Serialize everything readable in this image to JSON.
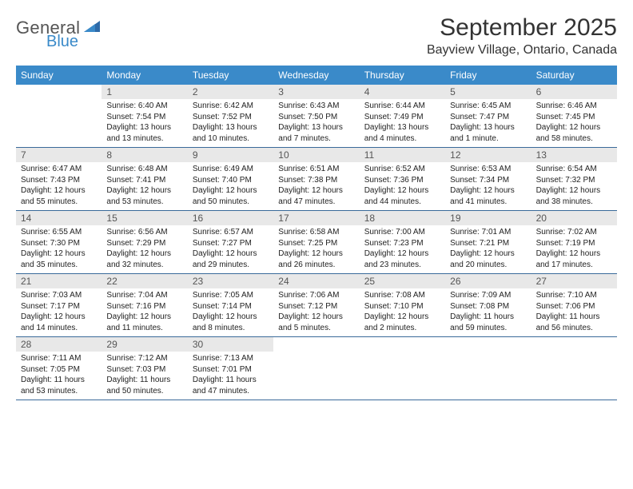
{
  "logo": {
    "word1": "General",
    "word2": "Blue"
  },
  "title": "September 2025",
  "location": "Bayview Village, Ontario, Canada",
  "colors": {
    "header_bg": "#3a8ac9",
    "header_text": "#ffffff",
    "daynum_bg": "#e8e8e8",
    "daynum_text": "#555555",
    "rule": "#3a6a9a",
    "logo_gray": "#555555",
    "logo_blue": "#3a8ac9",
    "body_text": "#222222",
    "page_bg": "#ffffff"
  },
  "weekdays": [
    "Sunday",
    "Monday",
    "Tuesday",
    "Wednesday",
    "Thursday",
    "Friday",
    "Saturday"
  ],
  "layout": {
    "start_blank_cells": 0,
    "columns": 7
  },
  "days": [
    null,
    {
      "n": "1",
      "sunrise": "6:40 AM",
      "sunset": "7:54 PM",
      "day_h": 13,
      "day_m": 13
    },
    {
      "n": "2",
      "sunrise": "6:42 AM",
      "sunset": "7:52 PM",
      "day_h": 13,
      "day_m": 10
    },
    {
      "n": "3",
      "sunrise": "6:43 AM",
      "sunset": "7:50 PM",
      "day_h": 13,
      "day_m": 7
    },
    {
      "n": "4",
      "sunrise": "6:44 AM",
      "sunset": "7:49 PM",
      "day_h": 13,
      "day_m": 4
    },
    {
      "n": "5",
      "sunrise": "6:45 AM",
      "sunset": "7:47 PM",
      "day_h": 13,
      "day_m": 1
    },
    {
      "n": "6",
      "sunrise": "6:46 AM",
      "sunset": "7:45 PM",
      "day_h": 12,
      "day_m": 58
    },
    {
      "n": "7",
      "sunrise": "6:47 AM",
      "sunset": "7:43 PM",
      "day_h": 12,
      "day_m": 55
    },
    {
      "n": "8",
      "sunrise": "6:48 AM",
      "sunset": "7:41 PM",
      "day_h": 12,
      "day_m": 53
    },
    {
      "n": "9",
      "sunrise": "6:49 AM",
      "sunset": "7:40 PM",
      "day_h": 12,
      "day_m": 50
    },
    {
      "n": "10",
      "sunrise": "6:51 AM",
      "sunset": "7:38 PM",
      "day_h": 12,
      "day_m": 47
    },
    {
      "n": "11",
      "sunrise": "6:52 AM",
      "sunset": "7:36 PM",
      "day_h": 12,
      "day_m": 44
    },
    {
      "n": "12",
      "sunrise": "6:53 AM",
      "sunset": "7:34 PM",
      "day_h": 12,
      "day_m": 41
    },
    {
      "n": "13",
      "sunrise": "6:54 AM",
      "sunset": "7:32 PM",
      "day_h": 12,
      "day_m": 38
    },
    {
      "n": "14",
      "sunrise": "6:55 AM",
      "sunset": "7:30 PM",
      "day_h": 12,
      "day_m": 35
    },
    {
      "n": "15",
      "sunrise": "6:56 AM",
      "sunset": "7:29 PM",
      "day_h": 12,
      "day_m": 32
    },
    {
      "n": "16",
      "sunrise": "6:57 AM",
      "sunset": "7:27 PM",
      "day_h": 12,
      "day_m": 29
    },
    {
      "n": "17",
      "sunrise": "6:58 AM",
      "sunset": "7:25 PM",
      "day_h": 12,
      "day_m": 26
    },
    {
      "n": "18",
      "sunrise": "7:00 AM",
      "sunset": "7:23 PM",
      "day_h": 12,
      "day_m": 23
    },
    {
      "n": "19",
      "sunrise": "7:01 AM",
      "sunset": "7:21 PM",
      "day_h": 12,
      "day_m": 20
    },
    {
      "n": "20",
      "sunrise": "7:02 AM",
      "sunset": "7:19 PM",
      "day_h": 12,
      "day_m": 17
    },
    {
      "n": "21",
      "sunrise": "7:03 AM",
      "sunset": "7:17 PM",
      "day_h": 12,
      "day_m": 14
    },
    {
      "n": "22",
      "sunrise": "7:04 AM",
      "sunset": "7:16 PM",
      "day_h": 12,
      "day_m": 11
    },
    {
      "n": "23",
      "sunrise": "7:05 AM",
      "sunset": "7:14 PM",
      "day_h": 12,
      "day_m": 8
    },
    {
      "n": "24",
      "sunrise": "7:06 AM",
      "sunset": "7:12 PM",
      "day_h": 12,
      "day_m": 5
    },
    {
      "n": "25",
      "sunrise": "7:08 AM",
      "sunset": "7:10 PM",
      "day_h": 12,
      "day_m": 2
    },
    {
      "n": "26",
      "sunrise": "7:09 AM",
      "sunset": "7:08 PM",
      "day_h": 11,
      "day_m": 59
    },
    {
      "n": "27",
      "sunrise": "7:10 AM",
      "sunset": "7:06 PM",
      "day_h": 11,
      "day_m": 56
    },
    {
      "n": "28",
      "sunrise": "7:11 AM",
      "sunset": "7:05 PM",
      "day_h": 11,
      "day_m": 53
    },
    {
      "n": "29",
      "sunrise": "7:12 AM",
      "sunset": "7:03 PM",
      "day_h": 11,
      "day_m": 50
    },
    {
      "n": "30",
      "sunrise": "7:13 AM",
      "sunset": "7:01 PM",
      "day_h": 11,
      "day_m": 47
    }
  ],
  "labels": {
    "sunrise": "Sunrise:",
    "sunset": "Sunset:",
    "daylight": "Daylight:",
    "hours": "hours",
    "and": "and",
    "minutes": "minutes.",
    "minute": "minute."
  }
}
